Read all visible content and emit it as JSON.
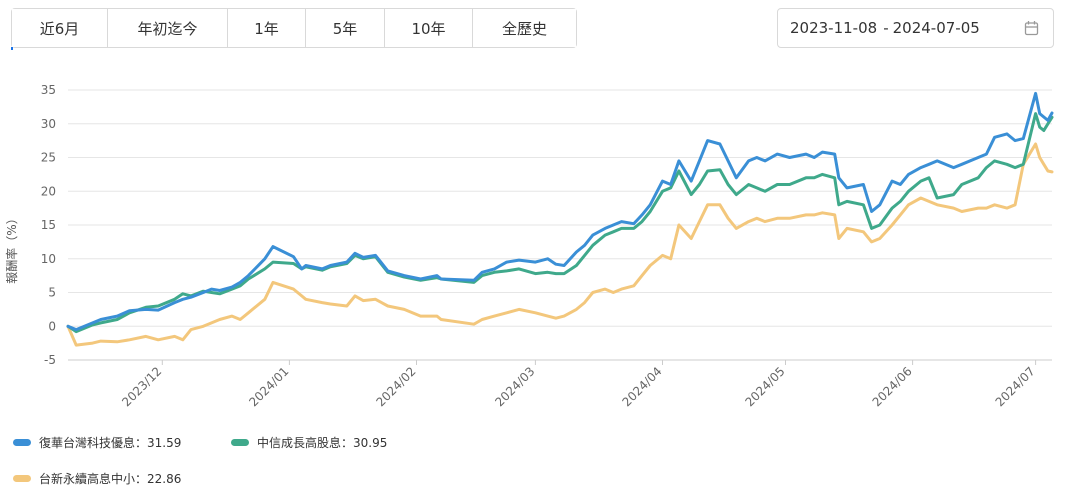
{
  "range_buttons": [
    "近6月",
    "年初迄今",
    "1年",
    "5年",
    "10年",
    "全歷史"
  ],
  "date_range": {
    "start": "2023-11-08",
    "separator": "-",
    "end": "2024-07-05",
    "icon": "calendar-icon"
  },
  "chart_data": {
    "type": "line",
    "ylabel": "報酬率（%）",
    "ylim": [
      -5,
      35
    ],
    "yticks": [
      -5,
      0,
      5,
      10,
      15,
      20,
      25,
      30,
      35
    ],
    "xlim": [
      "2023-11-08",
      "2024-07-05"
    ],
    "xticks": [
      "2023/12",
      "2024/01",
      "2024/02",
      "2024/03",
      "2024/04",
      "2024/05",
      "2024/06",
      "2024/07"
    ],
    "grid": true,
    "legend_position": "bottom-left",
    "series": [
      {
        "name": "復華台灣科技優息",
        "last": "31.59",
        "color": "#3a8fd6",
        "points": [
          [
            "2023-11-08",
            0
          ],
          [
            "2023-11-10",
            -0.5
          ],
          [
            "2023-11-14",
            0.5
          ],
          [
            "2023-11-16",
            1.0
          ],
          [
            "2023-11-20",
            1.5
          ],
          [
            "2023-11-23",
            2.3
          ],
          [
            "2023-11-27",
            2.5
          ],
          [
            "2023-11-30",
            2.4
          ],
          [
            "2023-12-04",
            3.5
          ],
          [
            "2023-12-06",
            4.0
          ],
          [
            "2023-12-08",
            4.3
          ],
          [
            "2023-12-11",
            5.0
          ],
          [
            "2023-12-13",
            5.5
          ],
          [
            "2023-12-15",
            5.3
          ],
          [
            "2023-12-18",
            5.8
          ],
          [
            "2023-12-20",
            6.5
          ],
          [
            "2023-12-22",
            7.5
          ],
          [
            "2023-12-26",
            10.0
          ],
          [
            "2023-12-28",
            11.8
          ],
          [
            "2024-01-02",
            10.3
          ],
          [
            "2024-01-04",
            8.5
          ],
          [
            "2024-01-05",
            9.0
          ],
          [
            "2024-01-09",
            8.5
          ],
          [
            "2024-01-11",
            9.0
          ],
          [
            "2024-01-15",
            9.5
          ],
          [
            "2024-01-17",
            10.8
          ],
          [
            "2024-01-19",
            10.2
          ],
          [
            "2024-01-22",
            10.5
          ],
          [
            "2024-01-25",
            8.2
          ],
          [
            "2024-01-29",
            7.5
          ],
          [
            "2024-02-02",
            7.0
          ],
          [
            "2024-02-06",
            7.5
          ],
          [
            "2024-02-07",
            7.0
          ],
          [
            "2024-02-15",
            6.8
          ],
          [
            "2024-02-17",
            8.0
          ],
          [
            "2024-02-20",
            8.5
          ],
          [
            "2024-02-23",
            9.5
          ],
          [
            "2024-02-26",
            9.8
          ],
          [
            "2024-03-01",
            9.5
          ],
          [
            "2024-03-04",
            10.0
          ],
          [
            "2024-03-06",
            9.2
          ],
          [
            "2024-03-08",
            9.0
          ],
          [
            "2024-03-11",
            11.0
          ],
          [
            "2024-03-13",
            12.0
          ],
          [
            "2024-03-15",
            13.5
          ],
          [
            "2024-03-18",
            14.5
          ],
          [
            "2024-03-20",
            15.0
          ],
          [
            "2024-03-22",
            15.5
          ],
          [
            "2024-03-25",
            15.2
          ],
          [
            "2024-03-27",
            16.5
          ],
          [
            "2024-03-29",
            18.0
          ],
          [
            "2024-04-01",
            21.5
          ],
          [
            "2024-04-03",
            21.0
          ],
          [
            "2024-04-05",
            24.5
          ],
          [
            "2024-04-08",
            21.5
          ],
          [
            "2024-04-10",
            24.5
          ],
          [
            "2024-04-12",
            27.5
          ],
          [
            "2024-04-15",
            27.0
          ],
          [
            "2024-04-17",
            24.5
          ],
          [
            "2024-04-19",
            22.0
          ],
          [
            "2024-04-22",
            24.5
          ],
          [
            "2024-04-24",
            25.0
          ],
          [
            "2024-04-26",
            24.5
          ],
          [
            "2024-04-29",
            25.5
          ],
          [
            "2024-05-02",
            25.0
          ],
          [
            "2024-05-06",
            25.5
          ],
          [
            "2024-05-08",
            25.0
          ],
          [
            "2024-05-10",
            25.8
          ],
          [
            "2024-05-13",
            25.5
          ],
          [
            "2024-05-14",
            22.0
          ],
          [
            "2024-05-16",
            20.5
          ],
          [
            "2024-05-20",
            21.0
          ],
          [
            "2024-05-22",
            17.0
          ],
          [
            "2024-05-24",
            18.0
          ],
          [
            "2024-05-27",
            21.5
          ],
          [
            "2024-05-29",
            21.0
          ],
          [
            "2024-05-31",
            22.5
          ],
          [
            "2024-06-03",
            23.5
          ],
          [
            "2024-06-05",
            24.0
          ],
          [
            "2024-06-07",
            24.5
          ],
          [
            "2024-06-11",
            23.5
          ],
          [
            "2024-06-13",
            24.0
          ],
          [
            "2024-06-17",
            25.0
          ],
          [
            "2024-06-19",
            25.5
          ],
          [
            "2024-06-21",
            28.0
          ],
          [
            "2024-06-24",
            28.5
          ],
          [
            "2024-06-26",
            27.5
          ],
          [
            "2024-06-28",
            27.8
          ],
          [
            "2024-07-01",
            34.5
          ],
          [
            "2024-07-02",
            31.5
          ],
          [
            "2024-07-03",
            31.0
          ],
          [
            "2024-07-04",
            30.5
          ],
          [
            "2024-07-05",
            31.59
          ]
        ]
      },
      {
        "name": "中信成長高股息",
        "last": "30.95",
        "color": "#3fa98b",
        "points": [
          [
            "2023-11-08",
            0
          ],
          [
            "2023-11-10",
            -0.8
          ],
          [
            "2023-11-14",
            0.2
          ],
          [
            "2023-11-16",
            0.5
          ],
          [
            "2023-11-20",
            1.0
          ],
          [
            "2023-11-23",
            2.0
          ],
          [
            "2023-11-27",
            2.8
          ],
          [
            "2023-11-30",
            3.0
          ],
          [
            "2023-12-04",
            4.0
          ],
          [
            "2023-12-06",
            4.8
          ],
          [
            "2023-12-08",
            4.5
          ],
          [
            "2023-12-11",
            5.2
          ],
          [
            "2023-12-13",
            5.0
          ],
          [
            "2023-12-15",
            4.8
          ],
          [
            "2023-12-18",
            5.5
          ],
          [
            "2023-12-20",
            6.0
          ],
          [
            "2023-12-22",
            7.0
          ],
          [
            "2023-12-26",
            8.5
          ],
          [
            "2023-12-28",
            9.5
          ],
          [
            "2024-01-02",
            9.3
          ],
          [
            "2024-01-04",
            8.5
          ],
          [
            "2024-01-05",
            8.8
          ],
          [
            "2024-01-09",
            8.3
          ],
          [
            "2024-01-11",
            8.8
          ],
          [
            "2024-01-15",
            9.3
          ],
          [
            "2024-01-17",
            10.5
          ],
          [
            "2024-01-19",
            10.0
          ],
          [
            "2024-01-22",
            10.3
          ],
          [
            "2024-01-25",
            8.0
          ],
          [
            "2024-01-29",
            7.3
          ],
          [
            "2024-02-02",
            6.8
          ],
          [
            "2024-02-06",
            7.2
          ],
          [
            "2024-02-07",
            7.0
          ],
          [
            "2024-02-15",
            6.5
          ],
          [
            "2024-02-17",
            7.5
          ],
          [
            "2024-02-20",
            8.0
          ],
          [
            "2024-02-23",
            8.2
          ],
          [
            "2024-02-26",
            8.5
          ],
          [
            "2024-03-01",
            7.8
          ],
          [
            "2024-03-04",
            8.0
          ],
          [
            "2024-03-06",
            7.8
          ],
          [
            "2024-03-08",
            7.8
          ],
          [
            "2024-03-11",
            9.0
          ],
          [
            "2024-03-13",
            10.5
          ],
          [
            "2024-03-15",
            12.0
          ],
          [
            "2024-03-18",
            13.5
          ],
          [
            "2024-03-20",
            14.0
          ],
          [
            "2024-03-22",
            14.5
          ],
          [
            "2024-03-25",
            14.5
          ],
          [
            "2024-03-27",
            15.5
          ],
          [
            "2024-03-29",
            17.0
          ],
          [
            "2024-04-01",
            20.0
          ],
          [
            "2024-04-03",
            20.5
          ],
          [
            "2024-04-05",
            23.0
          ],
          [
            "2024-04-08",
            19.5
          ],
          [
            "2024-04-10",
            21.0
          ],
          [
            "2024-04-12",
            23.0
          ],
          [
            "2024-04-15",
            23.2
          ],
          [
            "2024-04-17",
            21.0
          ],
          [
            "2024-04-19",
            19.5
          ],
          [
            "2024-04-22",
            21.0
          ],
          [
            "2024-04-24",
            20.5
          ],
          [
            "2024-04-26",
            20.0
          ],
          [
            "2024-04-29",
            21.0
          ],
          [
            "2024-05-02",
            21.0
          ],
          [
            "2024-05-06",
            22.0
          ],
          [
            "2024-05-08",
            22.0
          ],
          [
            "2024-05-10",
            22.5
          ],
          [
            "2024-05-13",
            22.0
          ],
          [
            "2024-05-14",
            18.0
          ],
          [
            "2024-05-16",
            18.5
          ],
          [
            "2024-05-20",
            18.0
          ],
          [
            "2024-05-22",
            14.5
          ],
          [
            "2024-05-24",
            15.0
          ],
          [
            "2024-05-27",
            17.5
          ],
          [
            "2024-05-29",
            18.5
          ],
          [
            "2024-05-31",
            20.0
          ],
          [
            "2024-06-03",
            21.5
          ],
          [
            "2024-06-05",
            22.0
          ],
          [
            "2024-06-07",
            19.0
          ],
          [
            "2024-06-11",
            19.5
          ],
          [
            "2024-06-13",
            21.0
          ],
          [
            "2024-06-17",
            22.0
          ],
          [
            "2024-06-19",
            23.5
          ],
          [
            "2024-06-21",
            24.5
          ],
          [
            "2024-06-24",
            24.0
          ],
          [
            "2024-06-26",
            23.5
          ],
          [
            "2024-06-28",
            24.0
          ],
          [
            "2024-07-01",
            31.5
          ],
          [
            "2024-07-02",
            29.5
          ],
          [
            "2024-07-03",
            29.0
          ],
          [
            "2024-07-04",
            30.0
          ],
          [
            "2024-07-05",
            30.95
          ]
        ]
      },
      {
        "name": "台新永續高息中小",
        "last": "22.86",
        "color": "#f3c77c",
        "points": [
          [
            "2023-11-08",
            0
          ],
          [
            "2023-11-10",
            -2.8
          ],
          [
            "2023-11-14",
            -2.5
          ],
          [
            "2023-11-16",
            -2.2
          ],
          [
            "2023-11-20",
            -2.3
          ],
          [
            "2023-11-23",
            -2.0
          ],
          [
            "2023-11-27",
            -1.5
          ],
          [
            "2023-11-30",
            -2.0
          ],
          [
            "2023-12-04",
            -1.5
          ],
          [
            "2023-12-06",
            -2.0
          ],
          [
            "2023-12-08",
            -0.5
          ],
          [
            "2023-12-11",
            0
          ],
          [
            "2023-12-13",
            0.5
          ],
          [
            "2023-12-15",
            1.0
          ],
          [
            "2023-12-18",
            1.5
          ],
          [
            "2023-12-20",
            1.0
          ],
          [
            "2023-12-22",
            2.0
          ],
          [
            "2023-12-26",
            4.0
          ],
          [
            "2023-12-28",
            6.5
          ],
          [
            "2024-01-02",
            5.5
          ],
          [
            "2024-01-04",
            4.5
          ],
          [
            "2024-01-05",
            4.0
          ],
          [
            "2024-01-09",
            3.5
          ],
          [
            "2024-01-11",
            3.3
          ],
          [
            "2024-01-15",
            3.0
          ],
          [
            "2024-01-17",
            4.5
          ],
          [
            "2024-01-19",
            3.8
          ],
          [
            "2024-01-22",
            4.0
          ],
          [
            "2024-01-25",
            3.0
          ],
          [
            "2024-01-29",
            2.5
          ],
          [
            "2024-02-02",
            1.5
          ],
          [
            "2024-02-06",
            1.5
          ],
          [
            "2024-02-07",
            1.0
          ],
          [
            "2024-02-15",
            0.3
          ],
          [
            "2024-02-17",
            1.0
          ],
          [
            "2024-02-20",
            1.5
          ],
          [
            "2024-02-23",
            2.0
          ],
          [
            "2024-02-26",
            2.5
          ],
          [
            "2024-03-01",
            2.0
          ],
          [
            "2024-03-04",
            1.5
          ],
          [
            "2024-03-06",
            1.2
          ],
          [
            "2024-03-08",
            1.5
          ],
          [
            "2024-03-11",
            2.5
          ],
          [
            "2024-03-13",
            3.5
          ],
          [
            "2024-03-15",
            5.0
          ],
          [
            "2024-03-18",
            5.5
          ],
          [
            "2024-03-20",
            5.0
          ],
          [
            "2024-03-22",
            5.5
          ],
          [
            "2024-03-25",
            6.0
          ],
          [
            "2024-03-27",
            7.5
          ],
          [
            "2024-03-29",
            9.0
          ],
          [
            "2024-04-01",
            10.5
          ],
          [
            "2024-04-03",
            10.0
          ],
          [
            "2024-04-05",
            15.0
          ],
          [
            "2024-04-08",
            13.0
          ],
          [
            "2024-04-10",
            15.5
          ],
          [
            "2024-04-12",
            18.0
          ],
          [
            "2024-04-15",
            18.0
          ],
          [
            "2024-04-17",
            16.0
          ],
          [
            "2024-04-19",
            14.5
          ],
          [
            "2024-04-22",
            15.5
          ],
          [
            "2024-04-24",
            16.0
          ],
          [
            "2024-04-26",
            15.5
          ],
          [
            "2024-04-29",
            16.0
          ],
          [
            "2024-05-02",
            16.0
          ],
          [
            "2024-05-06",
            16.5
          ],
          [
            "2024-05-08",
            16.5
          ],
          [
            "2024-05-10",
            16.8
          ],
          [
            "2024-05-13",
            16.5
          ],
          [
            "2024-05-14",
            13.0
          ],
          [
            "2024-05-16",
            14.5
          ],
          [
            "2024-05-20",
            14.0
          ],
          [
            "2024-05-22",
            12.5
          ],
          [
            "2024-05-24",
            13.0
          ],
          [
            "2024-05-27",
            15.0
          ],
          [
            "2024-05-29",
            16.5
          ],
          [
            "2024-05-31",
            18.0
          ],
          [
            "2024-06-03",
            19.0
          ],
          [
            "2024-06-05",
            18.5
          ],
          [
            "2024-06-07",
            18.0
          ],
          [
            "2024-06-11",
            17.5
          ],
          [
            "2024-06-13",
            17.0
          ],
          [
            "2024-06-17",
            17.5
          ],
          [
            "2024-06-19",
            17.5
          ],
          [
            "2024-06-21",
            18.0
          ],
          [
            "2024-06-24",
            17.5
          ],
          [
            "2024-06-26",
            18.0
          ],
          [
            "2024-06-28",
            24.0
          ],
          [
            "2024-07-01",
            27.0
          ],
          [
            "2024-07-02",
            25.0
          ],
          [
            "2024-07-03",
            24.0
          ],
          [
            "2024-07-04",
            23.0
          ],
          [
            "2024-07-05",
            22.86
          ]
        ]
      }
    ]
  }
}
